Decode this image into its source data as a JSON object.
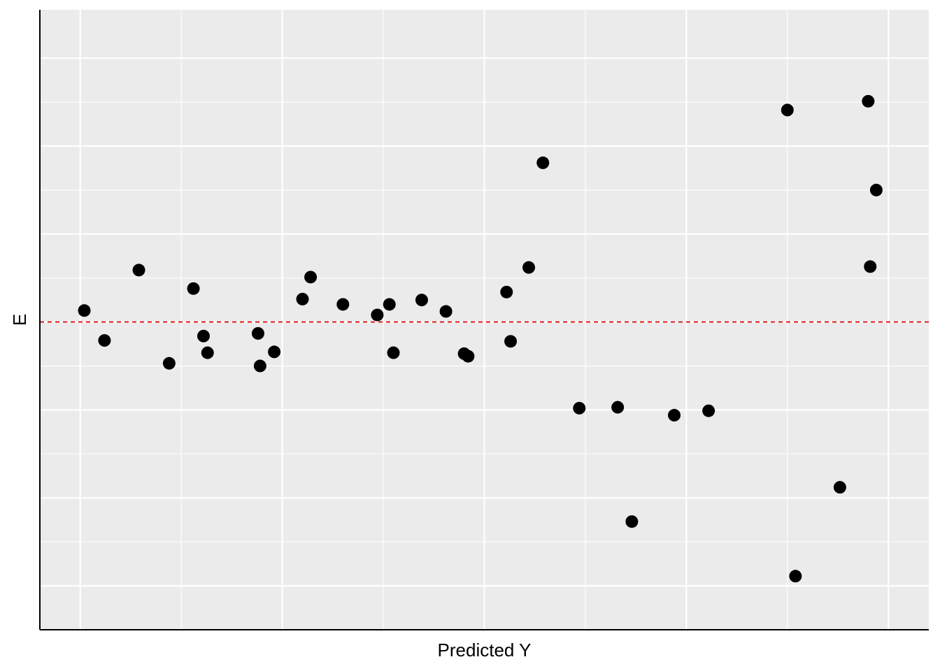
{
  "chart_data": {
    "type": "scatter",
    "title": "",
    "xlabel": "Predicted Y",
    "ylabel": "E",
    "xlim": [
      -0.2,
      4.2
    ],
    "ylim": [
      -3.5,
      3.55
    ],
    "grid": true,
    "x_ticks_labeled": false,
    "y_ticks_labeled": false,
    "reference_line": {
      "y": 0,
      "color": "#DD0000",
      "style": "dashed"
    },
    "colors": {
      "panel_background": "#EBEBEB",
      "grid": "#FFFFFF",
      "points": "#000000",
      "axis": "#000000"
    },
    "points": [
      {
        "x": 0.02,
        "y": 0.13
      },
      {
        "x": 0.12,
        "y": -0.21
      },
      {
        "x": 0.29,
        "y": 0.59
      },
      {
        "x": 0.44,
        "y": -0.47
      },
      {
        "x": 0.56,
        "y": 0.38
      },
      {
        "x": 0.61,
        "y": -0.16
      },
      {
        "x": 0.63,
        "y": -0.35
      },
      {
        "x": 0.88,
        "y": -0.13
      },
      {
        "x": 0.89,
        "y": -0.5
      },
      {
        "x": 0.96,
        "y": -0.34
      },
      {
        "x": 1.1,
        "y": 0.26
      },
      {
        "x": 1.14,
        "y": 0.51
      },
      {
        "x": 1.3,
        "y": 0.2
      },
      {
        "x": 1.47,
        "y": 0.08
      },
      {
        "x": 1.53,
        "y": 0.2
      },
      {
        "x": 1.55,
        "y": -0.35
      },
      {
        "x": 1.69,
        "y": 0.25
      },
      {
        "x": 1.81,
        "y": 0.12
      },
      {
        "x": 1.9,
        "y": -0.36
      },
      {
        "x": 1.92,
        "y": -0.39
      },
      {
        "x": 2.11,
        "y": 0.34
      },
      {
        "x": 2.13,
        "y": -0.22
      },
      {
        "x": 2.22,
        "y": 0.62
      },
      {
        "x": 2.29,
        "y": 1.81
      },
      {
        "x": 2.47,
        "y": -0.98
      },
      {
        "x": 2.66,
        "y": -0.97
      },
      {
        "x": 2.73,
        "y": -2.27
      },
      {
        "x": 2.94,
        "y": -1.06
      },
      {
        "x": 3.11,
        "y": -1.01
      },
      {
        "x": 3.5,
        "y": 2.41
      },
      {
        "x": 3.54,
        "y": -2.89
      },
      {
        "x": 3.76,
        "y": -1.88
      },
      {
        "x": 3.9,
        "y": 2.51
      },
      {
        "x": 3.91,
        "y": 0.63
      },
      {
        "x": 3.94,
        "y": 1.5
      }
    ]
  }
}
